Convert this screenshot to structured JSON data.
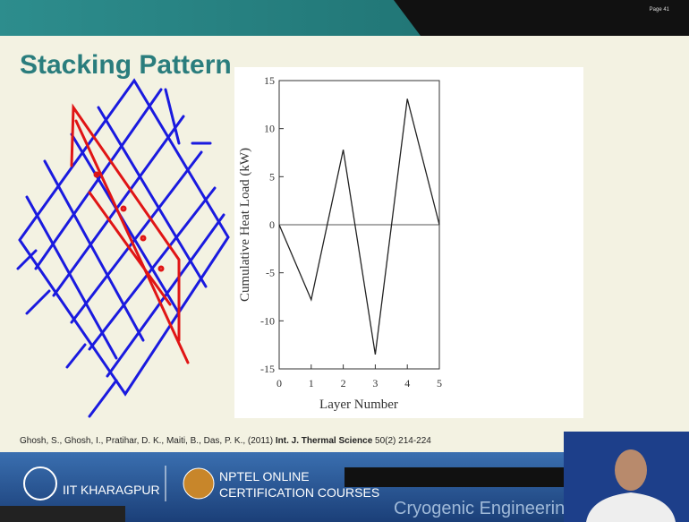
{
  "page_label": "Page 41",
  "slide_title": "Stacking Pattern",
  "citation": {
    "authors": "Ghosh, S., Ghosh, I., Pratihar, D. K., Maiti, B., Das, P. K., (2011)",
    "journal": "Int. J. Thermal Science",
    "volume": "50(2) 214-224"
  },
  "footer": {
    "institute": "IIT KHARAGPUR",
    "nptel_line1": "NPTEL ONLINE",
    "nptel_line2": "CERTIFICATION COURSES",
    "course": "Cryogenic Engineering C"
  },
  "chart_data": {
    "type": "line",
    "x_label": "Layer Number",
    "y_label": "Cumulative Heat Load (kW)",
    "x": [
      0,
      1,
      2,
      3,
      4,
      5
    ],
    "values": [
      0,
      -7.8,
      7.8,
      -13.5,
      13.1,
      0
    ],
    "color": "#222222",
    "xlim": [
      0,
      5
    ],
    "xticks": [
      0,
      1,
      2,
      3,
      4,
      5
    ],
    "ylim": [
      -15,
      15
    ],
    "yticks": [
      -15,
      -10,
      -5,
      0,
      5,
      10,
      15
    ]
  }
}
